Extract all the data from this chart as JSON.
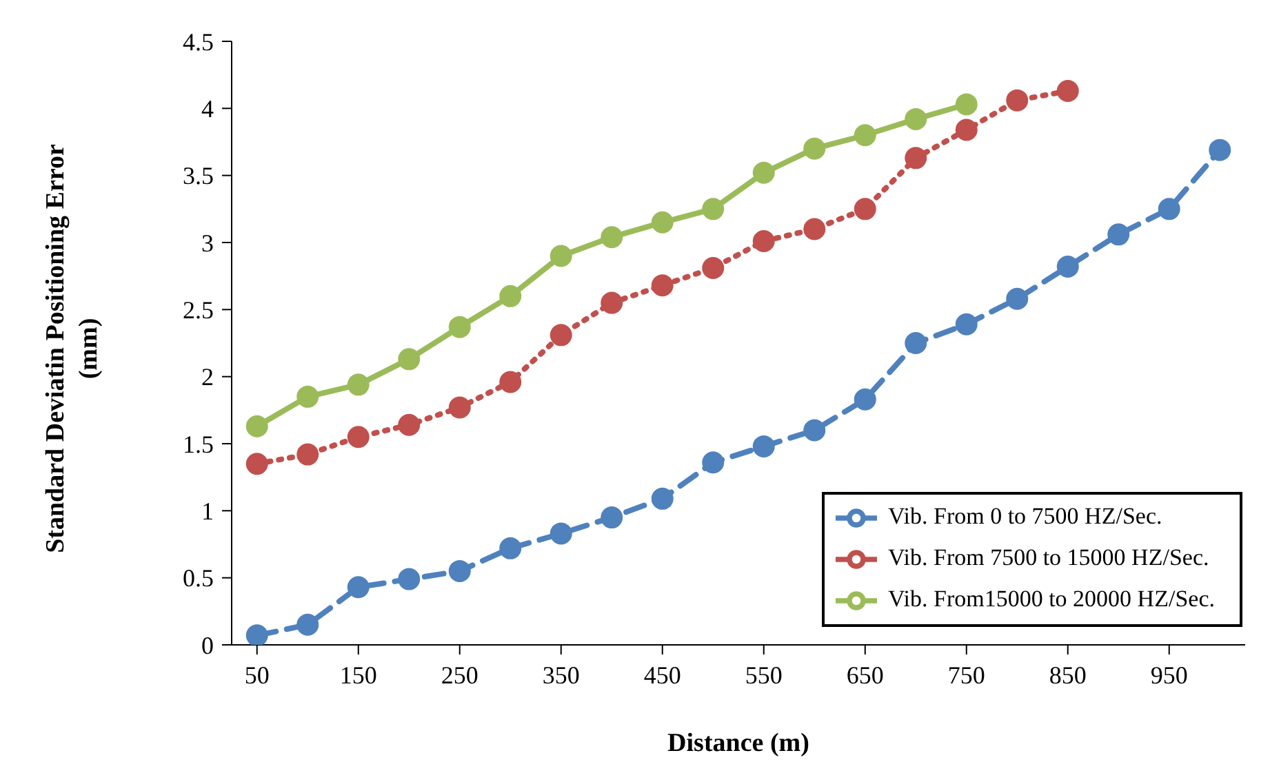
{
  "chart_data": {
    "type": "line",
    "xlabel": "Distance (m)",
    "ylabel": "Standard Deviatin Positioning Error (mm)",
    "xlim": [
      25,
      1025
    ],
    "xticks": [
      50,
      150,
      250,
      350,
      450,
      550,
      650,
      750,
      850,
      950
    ],
    "ylim": [
      0,
      4.5
    ],
    "yticks": [
      0,
      0.5,
      1,
      1.5,
      2,
      2.5,
      3,
      3.5,
      4,
      4.5
    ],
    "x": [
      50,
      100,
      150,
      200,
      250,
      300,
      350,
      400,
      450,
      500,
      550,
      600,
      650,
      700,
      750,
      800,
      850,
      900,
      950,
      1000
    ],
    "grid": false,
    "legend": "bottom right",
    "marker": "circle",
    "series": [
      {
        "name": "Vib. From 0 to 7500 HZ/Sec.",
        "color": "#4f81bd",
        "line_style": "dashed",
        "values": [
          0.07,
          0.15,
          0.43,
          0.49,
          0.55,
          0.72,
          0.83,
          0.95,
          1.09,
          1.36,
          1.48,
          1.6,
          1.83,
          2.25,
          2.39,
          2.58,
          2.82,
          3.06,
          3.25,
          3.69
        ]
      },
      {
        "name": "Vib. From 7500 to 15000 HZ/Sec.",
        "color": "#c0504d",
        "line_style": "dotted",
        "values": [
          1.35,
          1.42,
          1.55,
          1.64,
          1.77,
          1.96,
          2.31,
          2.55,
          2.68,
          2.81,
          3.01,
          3.1,
          3.25,
          3.63,
          3.84,
          4.06,
          4.13,
          null,
          null,
          null
        ]
      },
      {
        "name": "Vib. From15000 to 20000 HZ/Sec.",
        "color": "#9bbb59",
        "line_style": "solid",
        "values": [
          1.63,
          1.85,
          1.94,
          2.13,
          2.37,
          2.6,
          2.9,
          3.04,
          3.15,
          3.25,
          3.52,
          3.7,
          3.8,
          3.92,
          4.03,
          null,
          null,
          null,
          null,
          null
        ]
      }
    ]
  }
}
